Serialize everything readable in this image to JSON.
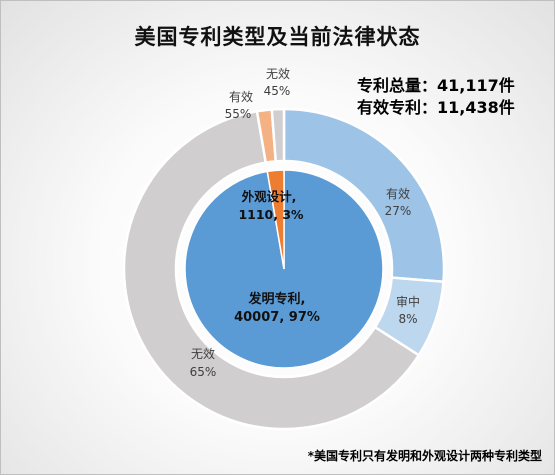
{
  "title": "美国专利类型及当前法律状态",
  "totals": {
    "total_label": "专利总量：41,117件",
    "valid_label": "有效专利：11,438件"
  },
  "footnote": "*美国专利只有发明和外观设计两种专利类型",
  "chart_data": {
    "type": "pie",
    "inner": {
      "slices": [
        {
          "name": "发明专利",
          "value": 40007,
          "percent_label": "97%",
          "color": "#5b9bd5"
        },
        {
          "name": "外观设计",
          "value": 1110,
          "percent_label": "3%",
          "color": "#ed7d31"
        }
      ]
    },
    "outer": {
      "groups": [
        {
          "parent": "发明专利",
          "slices": [
            {
              "name": "有效",
              "percent": 27,
              "percent_label": "27%",
              "color": "#9dc3e6"
            },
            {
              "name": "审中",
              "percent": 8,
              "percent_label": "8%",
              "color": "#bdd7ee"
            },
            {
              "name": "无效",
              "percent": 65,
              "percent_label": "65%",
              "color": "#d0cece"
            }
          ]
        },
        {
          "parent": "外观设计",
          "slices": [
            {
              "name": "有效",
              "percent": 55,
              "percent_label": "55%",
              "color": "#f4b183"
            },
            {
              "name": "无效",
              "percent": 45,
              "percent_label": "45%",
              "color": "#d0cece"
            }
          ]
        }
      ]
    }
  }
}
